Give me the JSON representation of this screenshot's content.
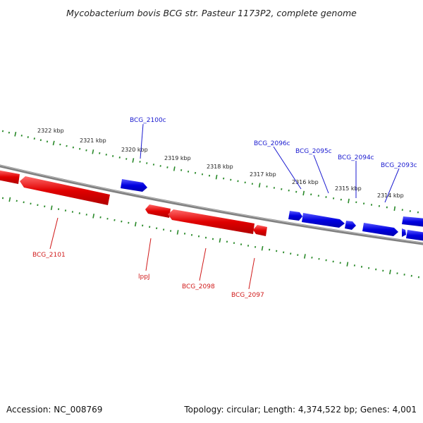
{
  "title": "Mycobacterium bovis BCG str. Pasteur 1173P2, complete genome",
  "footer": {
    "accession": "Accession: NC_008769",
    "summary": "Topology: circular; Length: 4,374,522 bp; Genes: 4,001"
  },
  "colors": {
    "forward_gene": "#0000e0",
    "reverse_gene": "#e00000",
    "backbone": "#808080",
    "ticks": "#2a8a2a",
    "forward_label": "#1a1ad0",
    "reverse_label": "#d01a1a"
  },
  "scale": {
    "unit": "kbp",
    "ticks": [
      {
        "label": "2322 kbp"
      },
      {
        "label": "2321 kbp"
      },
      {
        "label": "2320 kbp"
      },
      {
        "label": "2319 kbp"
      },
      {
        "label": "2318 kbp"
      },
      {
        "label": "2317 kbp"
      },
      {
        "label": "2316 kbp"
      },
      {
        "label": "2315 kbp"
      },
      {
        "label": "2314 kbp"
      }
    ]
  },
  "forward_genes": [
    {
      "label": "BCG_2100c"
    },
    {
      "label": "BCG_2096c"
    },
    {
      "label": "BCG_2095c"
    },
    {
      "label": "BCG_2094c"
    },
    {
      "label": "BCG_2093c"
    }
  ],
  "reverse_genes": [
    {
      "label": "BCG_2101"
    },
    {
      "label": "lppJ"
    },
    {
      "label": "BCG_2098"
    },
    {
      "label": "BCG_2097"
    }
  ]
}
